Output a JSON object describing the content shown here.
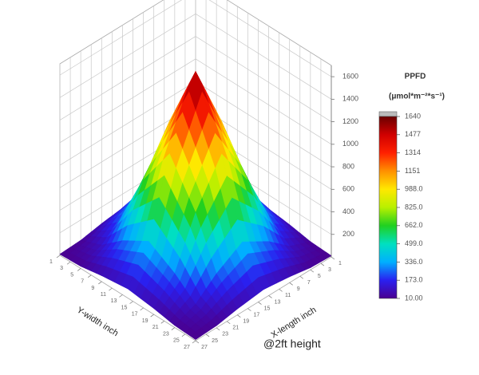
{
  "chart_data": {
    "type": "surface",
    "x": [
      1,
      5,
      9,
      14,
      19,
      23,
      27
    ],
    "y": [
      1,
      5,
      9,
      14,
      19,
      23,
      27
    ],
    "z": [
      [
        10,
        19,
        53,
        82,
        53,
        19,
        10
      ],
      [
        19,
        92,
        249,
        389,
        249,
        92,
        19
      ],
      [
        53,
        249,
        674,
        1051,
        674,
        249,
        53
      ],
      [
        82,
        389,
        1051,
        1640,
        1051,
        389,
        82
      ],
      [
        53,
        249,
        674,
        1051,
        674,
        249,
        53
      ],
      [
        19,
        92,
        249,
        389,
        249,
        92,
        19
      ],
      [
        10,
        19,
        53,
        82,
        53,
        19,
        10
      ]
    ],
    "xlim": [
      1,
      27
    ],
    "ylim": [
      1,
      27
    ],
    "zlim": [
      0,
      1700
    ],
    "xticks": [
      1,
      3,
      5,
      7,
      9,
      11,
      13,
      15,
      17,
      19,
      21,
      23,
      25,
      27
    ],
    "yticks": [
      1,
      3,
      5,
      7,
      9,
      11,
      13,
      15,
      17,
      19,
      21,
      23,
      25,
      27
    ],
    "zticks": [
      200,
      400,
      600,
      800,
      1000,
      1200,
      1400,
      1600
    ],
    "xlabel": "X-length inch",
    "ylabel": "Y-width inch",
    "annotation": "@2ft height",
    "grid": true,
    "colorbar": {
      "title": "PPFD",
      "unit": "(μmol*m⁻²*s⁻¹)",
      "lim": [
        10,
        1640
      ],
      "ticks": [
        {
          "value": 10,
          "label": "10.00"
        },
        {
          "value": 173,
          "label": "173.0"
        },
        {
          "value": 336,
          "label": "336.0"
        },
        {
          "value": 499,
          "label": "499.0"
        },
        {
          "value": 662,
          "label": "662.0"
        },
        {
          "value": 825,
          "label": "825.0"
        },
        {
          "value": 988,
          "label": "988.0"
        },
        1151,
        1314,
        1477,
        1640
      ],
      "colors": [
        "#4a0090",
        "#2a20f0",
        "#00b0ff",
        "#00e0c0",
        "#20d020",
        "#b8f000",
        "#ffe800",
        "#ff9000",
        "#ff2000",
        "#d00000",
        "#6a0000"
      ]
    }
  }
}
